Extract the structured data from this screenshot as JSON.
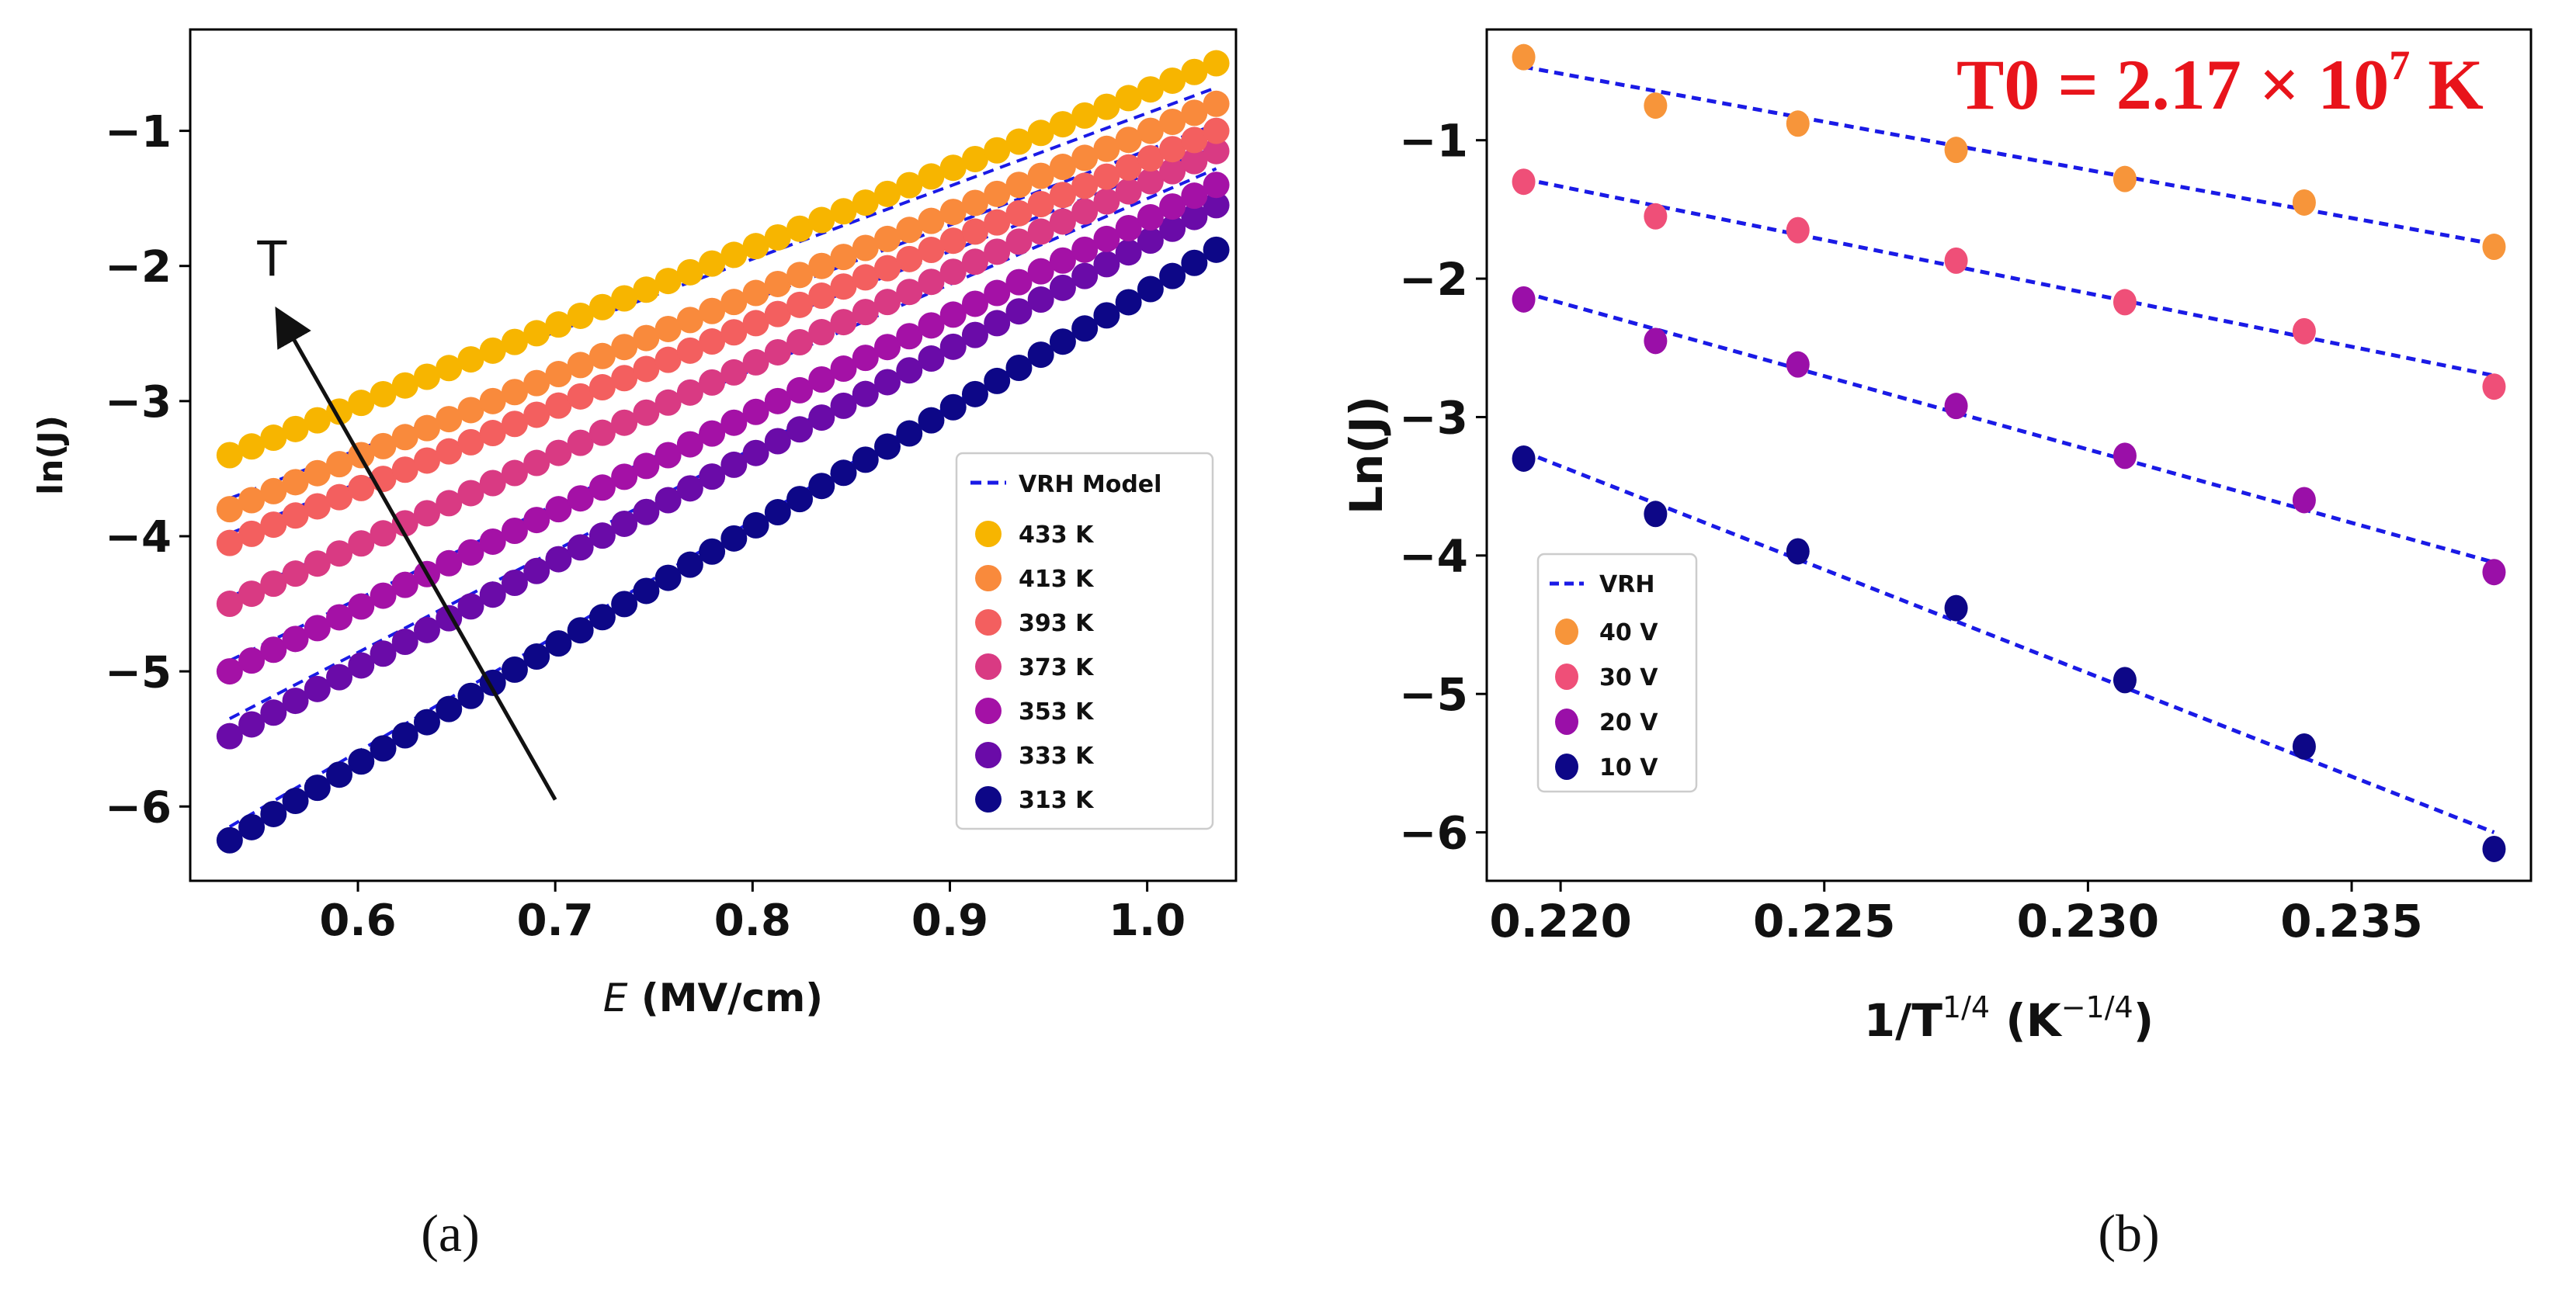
{
  "colors": {
    "fit_line": "#1a1ae6",
    "arrow": "#111111",
    "annotation": "#e8141b"
  },
  "chart_data": [
    {
      "id": "a",
      "type": "line",
      "panel_label": "(a)",
      "xlabel_italic": "E",
      "xlabel_rest": " (MV/cm)",
      "ylabel": "ln(J)",
      "xlim": [
        0.515,
        1.045
      ],
      "ylim": [
        -6.55,
        -0.25
      ],
      "xticks": [
        0.6,
        0.7,
        0.8,
        0.9,
        1.0
      ],
      "xtick_labels": [
        "0.6",
        "0.7",
        "0.8",
        "0.9",
        "1.0"
      ],
      "yticks": [
        -6,
        -5,
        -4,
        -3,
        -2,
        -1
      ],
      "ytick_labels": [
        "−6",
        "−5",
        "−4",
        "−3",
        "−2",
        "−1"
      ],
      "arrow_label": "T",
      "arrow_from": [
        0.7,
        -5.95
      ],
      "arrow_to": [
        0.56,
        -2.35
      ],
      "legend": {
        "position": "lower-right",
        "fit_label": "VRH Model"
      },
      "x_range": [
        0.535,
        1.035
      ],
      "n_points": 46,
      "series": [
        {
          "name": "433 K",
          "color": "#f7b500",
          "y_start": -3.4,
          "y_end": -0.5,
          "fit": [
            -3.38,
            -0.68
          ]
        },
        {
          "name": "413 K",
          "color": "#f98a3c",
          "y_start": -3.8,
          "y_end": -0.8,
          "fit": [
            -3.72,
            -0.95
          ]
        },
        {
          "name": "393 K",
          "color": "#f35f5f",
          "y_start": -4.05,
          "y_end": -1.0,
          "fit": [
            -3.98,
            -1.12
          ]
        },
        {
          "name": "373 K",
          "color": "#d93a83",
          "y_start": -4.5,
          "y_end": -1.15,
          "fit": [
            -4.45,
            -1.28
          ]
        },
        {
          "name": "353 K",
          "color": "#a411a6",
          "y_start": -5.0,
          "y_end": -1.4,
          "fit": [
            -4.92,
            -1.42
          ]
        },
        {
          "name": "333 K",
          "color": "#6a0ba8",
          "y_start": -5.48,
          "y_end": -1.55,
          "fit": [
            -5.35,
            -1.58
          ]
        },
        {
          "name": "313 K",
          "color": "#0d0787",
          "y_start": -6.25,
          "y_end": -1.88,
          "fit": [
            -6.15,
            -1.88
          ]
        }
      ]
    },
    {
      "id": "b",
      "type": "scatter",
      "panel_label": "(b)",
      "xlabel_main": "1/T",
      "xlabel_sup": "1/4",
      "xlabel_open": " (K",
      "xlabel_sup2": "−1/4",
      "xlabel_close": ")",
      "ylabel": "Ln(J)",
      "xlim": [
        0.2186,
        0.2384
      ],
      "ylim": [
        -6.35,
        -0.2
      ],
      "xticks": [
        0.22,
        0.225,
        0.23,
        0.235
      ],
      "xtick_labels": [
        "0.220",
        "0.225",
        "0.230",
        "0.235"
      ],
      "yticks": [
        -6,
        -5,
        -4,
        -3,
        -2,
        -1
      ],
      "ytick_labels": [
        "−6",
        "−5",
        "−4",
        "−3",
        "−2",
        "−1"
      ],
      "annotation": {
        "main": "T0 = 2.17 × 10",
        "sup": "7",
        "unit": " K"
      },
      "legend": {
        "position": "lower-left",
        "fit_label": "VRH"
      },
      "x": [
        0.2193,
        0.2218,
        0.2245,
        0.2275,
        0.2307,
        0.2341,
        0.2377
      ],
      "series": [
        {
          "name": "40 V",
          "color": "#f7953a",
          "values": [
            -0.4,
            -0.75,
            -0.88,
            -1.07,
            -1.28,
            -1.45,
            -1.77
          ],
          "fit": [
            -0.47,
            -1.75
          ]
        },
        {
          "name": "30 V",
          "color": "#ef4f78",
          "values": [
            -1.3,
            -1.55,
            -1.65,
            -1.87,
            -2.17,
            -2.38,
            -2.78
          ],
          "fit": [
            -1.28,
            -2.7
          ]
        },
        {
          "name": "20 V",
          "color": "#9a0fa8",
          "values": [
            -2.15,
            -2.45,
            -2.62,
            -2.92,
            -3.28,
            -3.6,
            -4.12
          ],
          "fit": [
            -2.1,
            -4.05
          ]
        },
        {
          "name": "10 V",
          "color": "#0d0787",
          "values": [
            -3.3,
            -3.7,
            -3.97,
            -4.38,
            -4.9,
            -5.38,
            -6.12
          ],
          "fit": [
            -3.25,
            -6.0
          ]
        }
      ]
    }
  ]
}
